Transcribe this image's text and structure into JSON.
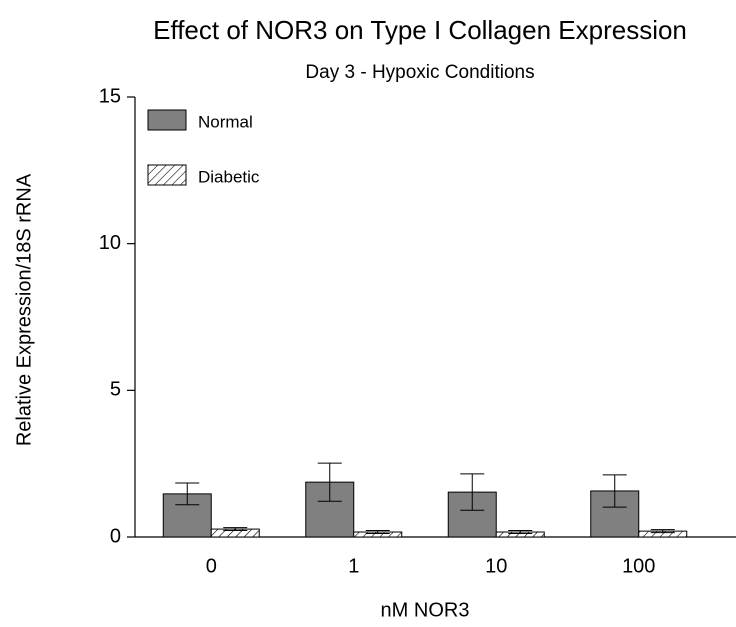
{
  "chart_data": {
    "type": "bar",
    "title": "Effect of NOR3 on Type I Collagen Expression",
    "subtitle": "Day 3 - Hypoxic Conditions",
    "x_label": "nM NOR3",
    "y_label": "Relative Expression/18S rRNA",
    "categories": [
      "0",
      "1",
      "10",
      "100"
    ],
    "series": [
      {
        "name": "Normal",
        "color": "#808080",
        "hatch": false,
        "values": [
          1.47,
          1.87,
          1.53,
          1.57
        ],
        "errors": [
          0.37,
          0.65,
          0.62,
          0.55
        ]
      },
      {
        "name": "Diabetic",
        "color": "#ffffff",
        "hatch": true,
        "values": [
          0.27,
          0.17,
          0.17,
          0.2
        ],
        "errors": [
          0.05,
          0.05,
          0.05,
          0.05
        ]
      }
    ],
    "ylim": [
      0,
      15
    ],
    "yticks": [
      0,
      5,
      10,
      15
    ],
    "legend": "top-left"
  }
}
